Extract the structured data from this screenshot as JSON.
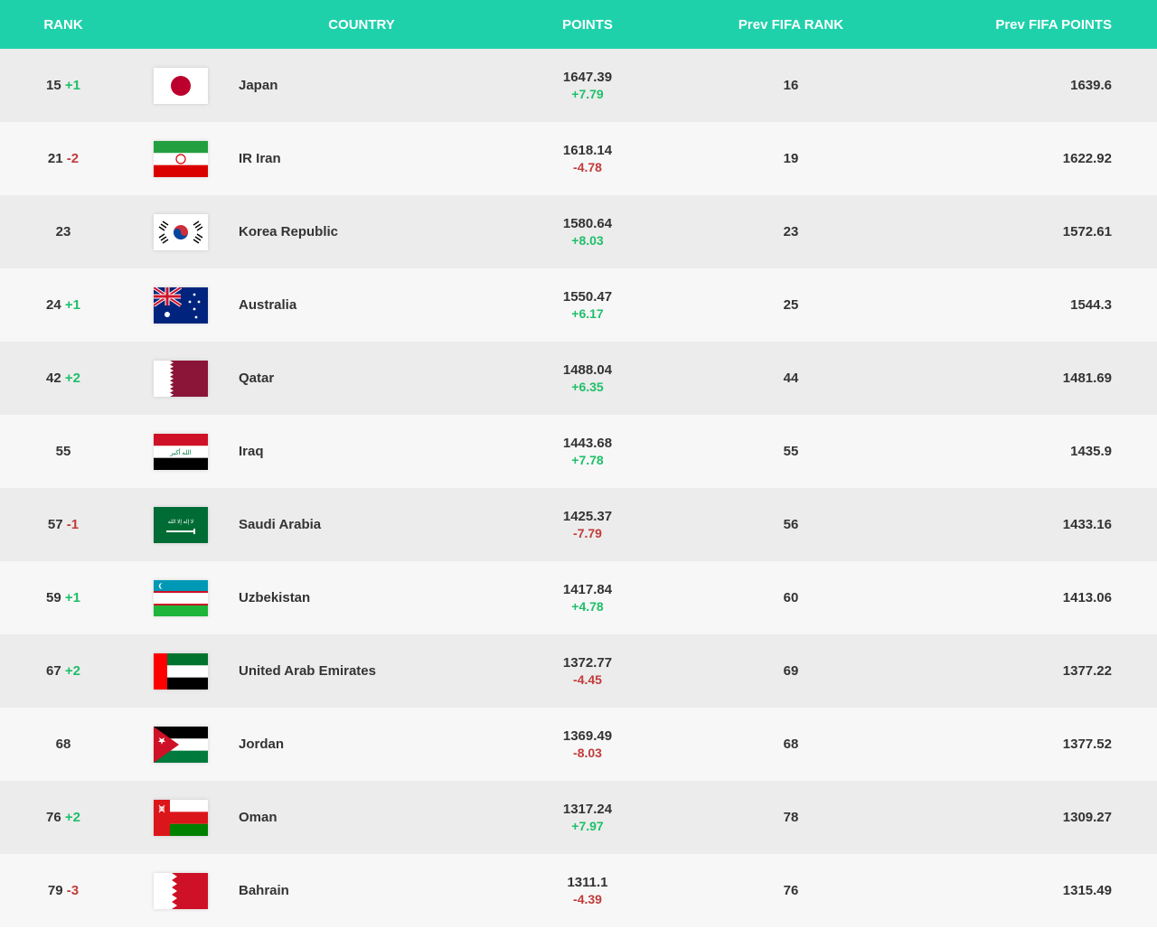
{
  "colors": {
    "header_bg": "#1fd1ab",
    "header_text": "#ffffff",
    "row_odd": "#ececec",
    "row_even": "#f7f7f7",
    "text": "#333333",
    "delta_pos": "#1fbf6a",
    "delta_neg": "#c23b3b"
  },
  "columns": {
    "rank": "RANK",
    "country": "COUNTRY",
    "points": "POINTS",
    "prev_rank": "Prev FIFA RANK",
    "prev_points": "Prev FIFA POINTS"
  },
  "rows": [
    {
      "rank": "15",
      "rank_delta": "+1",
      "rank_delta_sign": "pos",
      "country": "Japan",
      "points": "1647.39",
      "points_delta": "+7.79",
      "points_delta_sign": "pos",
      "prev_rank": "16",
      "prev_points": "1639.6",
      "flag": "japan"
    },
    {
      "rank": "21",
      "rank_delta": "-2",
      "rank_delta_sign": "neg",
      "country": "IR Iran",
      "points": "1618.14",
      "points_delta": "-4.78",
      "points_delta_sign": "neg",
      "prev_rank": "19",
      "prev_points": "1622.92",
      "flag": "iran"
    },
    {
      "rank": "23",
      "rank_delta": "",
      "rank_delta_sign": "",
      "country": "Korea Republic",
      "points": "1580.64",
      "points_delta": "+8.03",
      "points_delta_sign": "pos",
      "prev_rank": "23",
      "prev_points": "1572.61",
      "flag": "korea"
    },
    {
      "rank": "24",
      "rank_delta": "+1",
      "rank_delta_sign": "pos",
      "country": "Australia",
      "points": "1550.47",
      "points_delta": "+6.17",
      "points_delta_sign": "pos",
      "prev_rank": "25",
      "prev_points": "1544.3",
      "flag": "australia"
    },
    {
      "rank": "42",
      "rank_delta": "+2",
      "rank_delta_sign": "pos",
      "country": "Qatar",
      "points": "1488.04",
      "points_delta": "+6.35",
      "points_delta_sign": "pos",
      "prev_rank": "44",
      "prev_points": "1481.69",
      "flag": "qatar"
    },
    {
      "rank": "55",
      "rank_delta": "",
      "rank_delta_sign": "",
      "country": "Iraq",
      "points": "1443.68",
      "points_delta": "+7.78",
      "points_delta_sign": "pos",
      "prev_rank": "55",
      "prev_points": "1435.9",
      "flag": "iraq"
    },
    {
      "rank": "57",
      "rank_delta": "-1",
      "rank_delta_sign": "neg",
      "country": "Saudi Arabia",
      "points": "1425.37",
      "points_delta": "-7.79",
      "points_delta_sign": "neg",
      "prev_rank": "56",
      "prev_points": "1433.16",
      "flag": "saudi"
    },
    {
      "rank": "59",
      "rank_delta": "+1",
      "rank_delta_sign": "pos",
      "country": "Uzbekistan",
      "points": "1417.84",
      "points_delta": "+4.78",
      "points_delta_sign": "pos",
      "prev_rank": "60",
      "prev_points": "1413.06",
      "flag": "uzbekistan"
    },
    {
      "rank": "67",
      "rank_delta": "+2",
      "rank_delta_sign": "pos",
      "country": "United Arab Emirates",
      "points": "1372.77",
      "points_delta": "-4.45",
      "points_delta_sign": "neg",
      "prev_rank": "69",
      "prev_points": "1377.22",
      "flag": "uae"
    },
    {
      "rank": "68",
      "rank_delta": "",
      "rank_delta_sign": "",
      "country": "Jordan",
      "points": "1369.49",
      "points_delta": "-8.03",
      "points_delta_sign": "neg",
      "prev_rank": "68",
      "prev_points": "1377.52",
      "flag": "jordan"
    },
    {
      "rank": "76",
      "rank_delta": "+2",
      "rank_delta_sign": "pos",
      "country": "Oman",
      "points": "1317.24",
      "points_delta": "+7.97",
      "points_delta_sign": "pos",
      "prev_rank": "78",
      "prev_points": "1309.27",
      "flag": "oman"
    },
    {
      "rank": "79",
      "rank_delta": "-3",
      "rank_delta_sign": "neg",
      "country": "Bahrain",
      "points": "1311.1",
      "points_delta": "-4.39",
      "points_delta_sign": "neg",
      "prev_rank": "76",
      "prev_points": "1315.49",
      "flag": "bahrain"
    }
  ]
}
